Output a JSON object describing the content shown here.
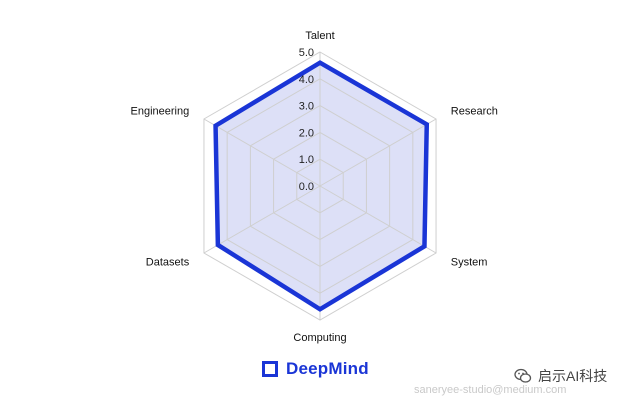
{
  "chart_data": {
    "type": "radar",
    "axes": [
      "Talent",
      "Research",
      "System",
      "Computing",
      "Datasets",
      "Engineering"
    ],
    "series": [
      {
        "name": "DeepMind",
        "values": [
          4.6,
          4.6,
          4.5,
          4.6,
          4.4,
          4.5
        ]
      }
    ],
    "rlim": [
      0,
      5
    ],
    "ticks": [
      "0.0",
      "1.0",
      "2.0",
      "3.0",
      "4.0",
      "5.0"
    ],
    "grid": true,
    "legend_position": "bottom-center"
  },
  "colors": {
    "series": "#1a35d6",
    "fill": "#dde0f7",
    "grid": "#cfcfcf"
  },
  "legend": {
    "label": "DeepMind"
  },
  "footer": {
    "url": "saneryee-studio@medium.com",
    "watermark_text": "启示AI科技",
    "watermark_icon": "wechat-icon"
  }
}
